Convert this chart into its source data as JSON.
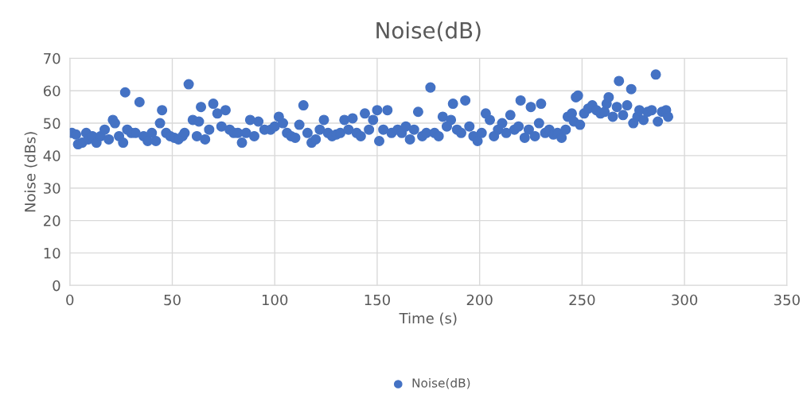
{
  "chart_data": {
    "type": "scatter",
    "title": "Noise(dB)",
    "xlabel": "Time (s)",
    "ylabel": "Noise (dBs)",
    "xlim": [
      0,
      350
    ],
    "xticks": [
      0,
      50,
      100,
      150,
      200,
      250,
      300,
      350
    ],
    "ylim": [
      0,
      70
    ],
    "yticks": [
      0,
      10,
      20,
      30,
      40,
      50,
      60,
      70
    ],
    "grid": true,
    "legend": "bottom",
    "marker": "circle",
    "series": [
      {
        "name": "Noise(dB)",
        "color": "#4472c4",
        "x": [
          1,
          3,
          4,
          6,
          8,
          9,
          11,
          13,
          15,
          17,
          19,
          21,
          22,
          24,
          26,
          27,
          28,
          30,
          32,
          34,
          36,
          38,
          40,
          42,
          44,
          45,
          47,
          49,
          51,
          53,
          55,
          56,
          58,
          60,
          62,
          63,
          64,
          66,
          68,
          70,
          72,
          74,
          76,
          78,
          80,
          82,
          84,
          86,
          88,
          90,
          92,
          95,
          98,
          100,
          102,
          104,
          106,
          108,
          110,
          112,
          114,
          116,
          118,
          120,
          122,
          124,
          126,
          128,
          130,
          132,
          134,
          136,
          138,
          140,
          142,
          144,
          146,
          148,
          150,
          151,
          153,
          155,
          157,
          160,
          162,
          164,
          166,
          168,
          170,
          172,
          174,
          176,
          178,
          180,
          182,
          184,
          186,
          187,
          189,
          191,
          193,
          195,
          197,
          199,
          201,
          203,
          205,
          207,
          209,
          211,
          213,
          215,
          217,
          219,
          220,
          222,
          224,
          225,
          227,
          229,
          230,
          232,
          234,
          236,
          238,
          240,
          242,
          243,
          245,
          246,
          247,
          248,
          249,
          251,
          253,
          255,
          257,
          259,
          261,
          262,
          263,
          265,
          267,
          268,
          270,
          272,
          274,
          275,
          277,
          278,
          280,
          282,
          284,
          286,
          287,
          289,
          291,
          292
        ],
        "values": [
          47,
          46.5,
          43.5,
          44,
          47,
          45,
          46,
          44,
          46,
          48,
          45,
          51,
          50,
          46,
          44,
          59.5,
          48,
          47,
          47,
          56.5,
          46,
          44.5,
          47,
          44.5,
          50,
          54,
          47,
          46,
          45.5,
          45,
          46,
          47,
          62,
          51,
          46,
          50.5,
          55,
          45,
          48,
          56,
          53,
          49,
          54,
          48,
          47,
          47,
          44,
          47,
          51,
          46,
          50.5,
          48,
          48,
          49,
          52,
          50,
          47,
          46,
          45.5,
          49.5,
          55.5,
          47,
          44,
          45,
          48,
          51,
          47,
          46,
          46.5,
          47,
          51,
          48,
          51.5,
          47,
          46,
          53,
          48,
          51,
          54,
          44.5,
          48,
          54,
          47,
          48,
          47,
          49,
          45,
          48,
          53.5,
          46,
          47,
          61,
          47,
          46,
          52,
          49,
          51,
          56,
          48,
          47,
          57,
          49,
          46,
          44.5,
          47,
          53,
          51,
          46,
          48,
          50,
          47,
          52.5,
          48,
          49,
          57,
          45.5,
          48,
          55,
          46,
          50,
          56,
          47,
          48,
          46.5,
          47,
          45.5,
          48,
          52,
          53,
          50.5,
          58,
          58.5,
          49.5,
          53,
          54.5,
          55.5,
          54,
          53,
          53.5,
          56,
          58,
          52,
          55,
          63,
          52.5,
          55.5,
          60.5,
          50,
          52,
          54,
          51,
          53.5,
          54,
          65,
          50.5,
          53.5,
          54,
          52
        ]
      }
    ]
  }
}
